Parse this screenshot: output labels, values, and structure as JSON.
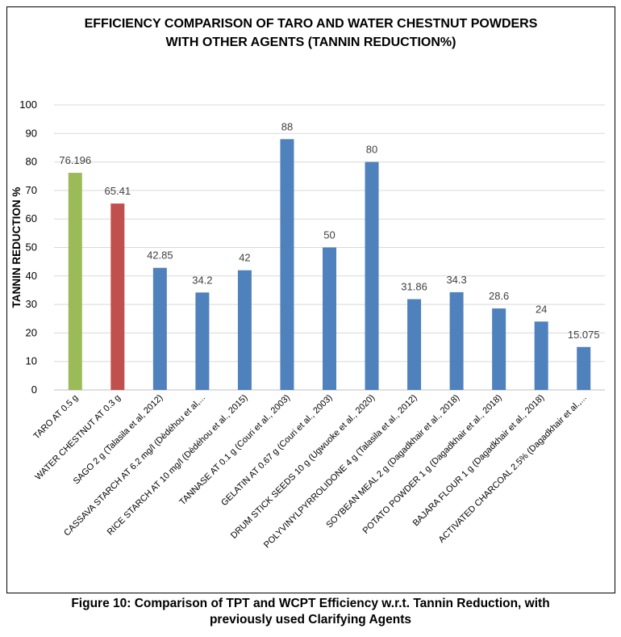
{
  "chart_data": {
    "type": "bar",
    "title_lines": [
      "EFFICIENCY COMPARISON OF TARO AND WATER CHESTNUT POWDERS",
      "WITH OTHER AGENTS (TANNIN REDUCTION%)"
    ],
    "ylabel": "TANNIN REDUCTION %",
    "xlabel": "",
    "ylim": [
      0,
      100
    ],
    "yticks": [
      0,
      10,
      20,
      30,
      40,
      50,
      60,
      70,
      80,
      90,
      100
    ],
    "grid": true,
    "legend": "none",
    "categories": [
      "TARO AT 0.5 g",
      "WATER CHESTNUT AT 0.3 g",
      "SAGO 2 g (Talasila et al, 2012)",
      "CASSAVA STARCH AT 6.2 mg/l (Dèdéhou et al,...",
      "RICE STARCH AT 10 mg/l (Dèdéhou et al., 2015)",
      "TANNASE AT 0.1 g (Couri et al., 2003)",
      "GELATIN AT 0.67 g (Couri et al., 2003)",
      "DRUM STICK SEEDS 10 g (Ugwuoke et al., 2020)",
      "POLYVINYLPYRROLIDONE 4 g (Talasila et al., 2012)",
      "SOYBEAN MEAL 2 g (Dagadkhair et al., 2018)",
      "POTATO POWDER 1 g (Dagadkhair et al., 2018)",
      "BAJARA FLOUR 1 g (Dagadkhair et al., 2018)",
      "ACTIVATED CHARCOAL 2.5% (Dagadkhair et al.,..."
    ],
    "values": [
      76.196,
      65.41,
      42.85,
      34.2,
      42,
      88,
      50,
      80,
      31.86,
      34.3,
      28.6,
      24,
      15.075
    ],
    "data_labels": [
      "76.196",
      "65.41",
      "42.85",
      "34.2",
      "42",
      "88",
      "50",
      "80",
      "31.86",
      "34.3",
      "28.6",
      "24",
      "15.075"
    ],
    "bar_colors": [
      "#9BBB59",
      "#C0504D",
      "#4F81BD",
      "#4F81BD",
      "#4F81BD",
      "#4F81BD",
      "#4F81BD",
      "#4F81BD",
      "#4F81BD",
      "#4F81BD",
      "#4F81BD",
      "#4F81BD",
      "#4F81BD"
    ]
  },
  "caption_lines": [
    "Figure 10: Comparison of TPT and WCPT Efficiency w.r.t. Tannin Reduction, with",
    "previously used Clarifying Agents"
  ]
}
